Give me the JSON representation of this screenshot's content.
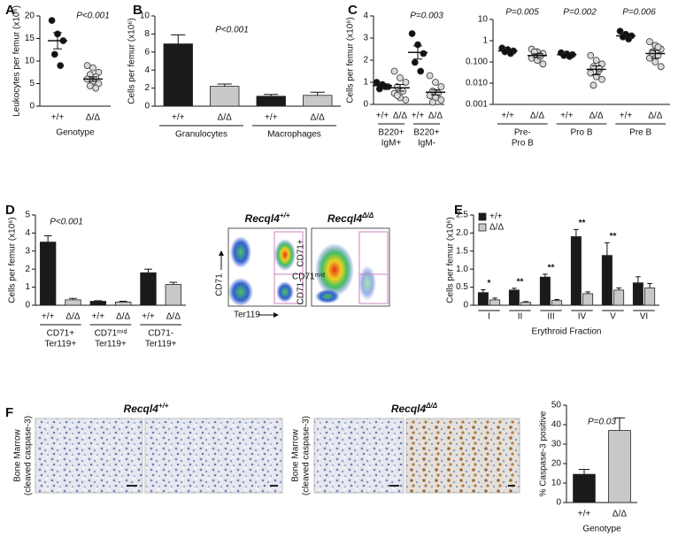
{
  "panels": [
    "A",
    "B",
    "C",
    "D",
    "E",
    "F"
  ],
  "chart_data": [
    {
      "type": "dot",
      "ylabel": "Leukocytes per femur (x10⁶)",
      "xlabel": "Genotype",
      "annotations": [
        "P<0.001"
      ],
      "categories": [
        "+/+",
        "Δ/Δ"
      ],
      "colors": [
        "#111111",
        "#d9d9d9"
      ],
      "points": [
        [
          19,
          16,
          14.5,
          11.5,
          9
        ],
        [
          9,
          8.5,
          7.5,
          7,
          6.5,
          6,
          5.5,
          5,
          4.5,
          4
        ]
      ],
      "means": [
        14.5,
        6
      ],
      "errors": [
        1.8,
        0.5
      ],
      "ylim": [
        0,
        20
      ],
      "yticks": [
        0,
        5,
        10,
        15,
        20
      ]
    },
    {
      "type": "bar",
      "ylabel": "Cells per femur (x10⁶)",
      "annotations": [
        "P<0.001"
      ],
      "categories": [
        "+/+",
        "Δ/Δ",
        "+/+",
        "Δ/Δ"
      ],
      "group_labels": [
        [
          "Granulocytes"
        ],
        [
          "Macrophages"
        ]
      ],
      "colors": [
        "#1a1a1a",
        "#c8c8c8",
        "#1a1a1a",
        "#c8c8c8"
      ],
      "values": [
        6.9,
        2.2,
        1.1,
        1.2
      ],
      "errors": [
        1.0,
        0.25,
        0.2,
        0.35
      ],
      "ylim": [
        0,
        10
      ],
      "yticks": [
        0,
        2,
        4,
        6,
        8,
        10
      ]
    },
    {
      "type": "dot",
      "ylabel": "Cells per femur (x10⁶)",
      "annotations": [
        "P=0.003"
      ],
      "categories": [
        "+/+",
        "Δ/Δ",
        "+/+",
        "Δ/Δ"
      ],
      "group_labels": [
        [
          "B220+",
          "IgM+"
        ],
        [
          "B220+",
          "IgM-"
        ]
      ],
      "colors": [
        "#111111",
        "#d9d9d9",
        "#111111",
        "#d9d9d9"
      ],
      "points": [
        [
          1.0,
          0.9,
          0.8,
          0.7,
          0.8
        ],
        [
          1.5,
          1.2,
          1.0,
          0.8,
          0.6,
          0.5,
          0.3,
          0.2,
          0.4
        ],
        [
          3.2,
          2.7,
          2.3,
          1.9,
          1.5
        ],
        [
          1.3,
          1.0,
          0.8,
          0.6,
          0.5,
          0.4,
          0.3,
          0.2,
          0.1
        ]
      ],
      "means": [
        0.85,
        0.75,
        2.35,
        0.55
      ],
      "errors": [
        0.08,
        0.15,
        0.3,
        0.12
      ],
      "ylim": [
        0,
        4
      ],
      "yticks": [
        0,
        1,
        2,
        3,
        4
      ]
    },
    {
      "type": "dot",
      "log_scale": true,
      "annotations": [
        "P=0.005",
        "P=0.002",
        "P=0.006"
      ],
      "categories": [
        "+/+",
        "Δ/Δ",
        "+/+",
        "Δ/Δ",
        "+/+",
        "Δ/Δ"
      ],
      "group_labels": [
        [
          "Pre-",
          "Pro B"
        ],
        [
          "Pro B"
        ],
        [
          "Pre B"
        ]
      ],
      "colors": [
        "#111111",
        "#d9d9d9",
        "#111111",
        "#d9d9d9",
        "#111111",
        "#d9d9d9"
      ],
      "points": [
        [
          0.45,
          0.38,
          0.33,
          0.3,
          0.25
        ],
        [
          0.4,
          0.3,
          0.25,
          0.22,
          0.2,
          0.15,
          0.12,
          0.08,
          0.3,
          0.18
        ],
        [
          0.27,
          0.24,
          0.22,
          0.2,
          0.18
        ],
        [
          0.2,
          0.12,
          0.08,
          0.06,
          0.04,
          0.03,
          0.02,
          0.015,
          0.008,
          0.05
        ],
        [
          2.8,
          2,
          1.7,
          1.5,
          1.2
        ],
        [
          0.9,
          0.6,
          0.4,
          0.3,
          0.2,
          0.15,
          0.1,
          0.06,
          0.25,
          0.5
        ]
      ],
      "means": [
        0.33,
        0.2,
        0.22,
        0.045,
        1.7,
        0.25
      ],
      "errors": [
        0.04,
        0.04,
        0.02,
        0.02,
        0.3,
        0.1
      ],
      "ylim": [
        0.001,
        10
      ],
      "yticks": [
        0.001,
        {
          "value": 0.01,
          "label": "0.010"
        },
        {
          "value": 0.1,
          "label": "0.100"
        },
        1,
        10
      ]
    },
    {
      "type": "bar",
      "ylabel": "Cells per femur (x10⁶)",
      "annotations": [
        "P<0.001"
      ],
      "categories": [
        "+/+",
        "Δ/Δ",
        "+/+",
        "Δ/Δ",
        "+/+",
        "Δ/Δ"
      ],
      "group_labels": [
        [
          "CD71+",
          "Ter119+"
        ],
        [
          "CD71ᵐⁱᵈ",
          "Ter119+"
        ],
        [
          "CD71-",
          "Ter119+"
        ]
      ],
      "colors": [
        "#1a1a1a",
        "#c8c8c8",
        "#1a1a1a",
        "#c8c8c8",
        "#1a1a1a",
        "#c8c8c8"
      ],
      "values": [
        3.5,
        0.3,
        0.22,
        0.18,
        1.8,
        1.15
      ],
      "errors": [
        0.35,
        0.08,
        0.03,
        0.04,
        0.2,
        0.12
      ],
      "ylim": [
        0,
        5
      ],
      "yticks": [
        0,
        1,
        2,
        3,
        4,
        5
      ]
    },
    {
      "type": "grouped_bar",
      "ylabel": "Cells per femur (x10⁶)",
      "xlabel": "Erythroid Fraction",
      "legend": "top-left",
      "categories": [
        "I",
        "II",
        "III",
        "IV",
        "V",
        "VI"
      ],
      "annotations": [
        "*",
        "**",
        "**",
        "**",
        "**",
        null
      ],
      "series": [
        {
          "name": "+/+",
          "color": "#1a1a1a",
          "values": [
            0.35,
            0.42,
            0.78,
            1.9,
            1.38,
            0.62
          ],
          "errors": [
            0.08,
            0.05,
            0.08,
            0.2,
            0.35,
            0.17
          ]
        },
        {
          "name": "Δ/Δ",
          "color": "#c8c8c8",
          "values": [
            0.15,
            0.08,
            0.13,
            0.32,
            0.42,
            0.48
          ],
          "errors": [
            0.05,
            0.02,
            0.03,
            0.05,
            0.06,
            0.12
          ]
        }
      ],
      "ylim": [
        0,
        2.5
      ],
      "yticks": [
        0,
        0.5,
        {
          "value": 1,
          "label": "1.0"
        },
        1.5,
        {
          "value": 2,
          "label": "2.0"
        },
        2.5
      ]
    },
    {
      "type": "bar",
      "ylabel": "% Caspase-3 positive",
      "xlabel": "Genotype",
      "annotations": [
        "P=0.03"
      ],
      "categories": [
        "+/+",
        "Δ/Δ"
      ],
      "colors": [
        "#1a1a1a",
        "#c8c8c8"
      ],
      "values": [
        14.5,
        37
      ],
      "errors": [
        2.5,
        6.5
      ],
      "ylim": [
        0,
        50
      ],
      "yticks": [
        0,
        10,
        20,
        30,
        40,
        50
      ]
    }
  ],
  "flow": {
    "plots": [
      {
        "gene": "Recql4",
        "genotype": "+/+"
      },
      {
        "gene": "Recql4",
        "genotype": "Δ/Δ"
      }
    ],
    "y_axis": "CD71",
    "x_axis": "Ter119",
    "gates": [
      "CD71+",
      "CD71ᵐⁱᵈ",
      "CD71-"
    ]
  },
  "histology": {
    "samples": [
      {
        "gene": "Recql4",
        "genotype": "+/+"
      },
      {
        "gene": "Recql4",
        "genotype": "Δ/Δ"
      }
    ],
    "stain_label": [
      "Bone Marrow",
      "(cleaved caspase-3)"
    ]
  }
}
